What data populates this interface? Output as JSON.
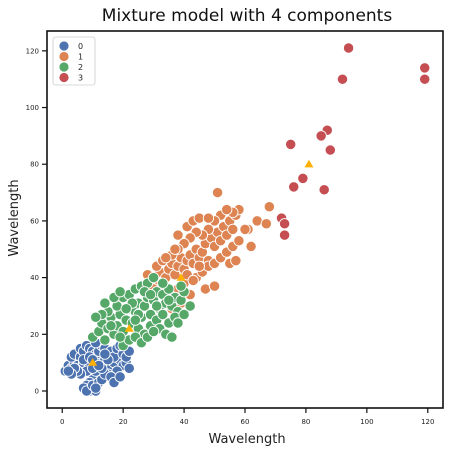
{
  "chart_data": {
    "type": "scatter",
    "title": "Mixture model with 4 components",
    "xlabel": "Wavelength",
    "ylabel": "Wavelength",
    "xlim": [
      -5,
      125
    ],
    "ylim": [
      -6,
      127
    ],
    "xticks": [
      0,
      20,
      40,
      60,
      80,
      100,
      120
    ],
    "yticks": [
      0,
      20,
      40,
      60,
      80,
      100,
      120
    ],
    "grid": false,
    "legend_position": "top-left",
    "series": [
      {
        "name": "0",
        "color": "#4c72b0",
        "points": [
          [
            1,
            7
          ],
          [
            2,
            9
          ],
          [
            3,
            8
          ],
          [
            4,
            10
          ],
          [
            5,
            11
          ],
          [
            3,
            12
          ],
          [
            4,
            13
          ],
          [
            6,
            12
          ],
          [
            5,
            9
          ],
          [
            7,
            10
          ],
          [
            8,
            13
          ],
          [
            6,
            15
          ],
          [
            7,
            14
          ],
          [
            8,
            16
          ],
          [
            9,
            15
          ],
          [
            10,
            14
          ],
          [
            11,
            13
          ],
          [
            12,
            12
          ],
          [
            13,
            10
          ],
          [
            14,
            11
          ],
          [
            15,
            9
          ],
          [
            16,
            8
          ],
          [
            17,
            10
          ],
          [
            18,
            12
          ],
          [
            19,
            11
          ],
          [
            20,
            9
          ],
          [
            21,
            10
          ],
          [
            22,
            8
          ],
          [
            18,
            7
          ],
          [
            15,
            6
          ],
          [
            12,
            5
          ],
          [
            10,
            4
          ],
          [
            9,
            3
          ],
          [
            8,
            2
          ],
          [
            7,
            1
          ],
          [
            9,
            0
          ],
          [
            11,
            0
          ],
          [
            8,
            0
          ],
          [
            10,
            2
          ],
          [
            12,
            3
          ],
          [
            13,
            4
          ],
          [
            14,
            6
          ],
          [
            16,
            5
          ],
          [
            17,
            3
          ],
          [
            19,
            5
          ],
          [
            11,
            7
          ],
          [
            9,
            9
          ],
          [
            8,
            7
          ],
          [
            6,
            6
          ],
          [
            5,
            7
          ],
          [
            4,
            8
          ],
          [
            3,
            6
          ],
          [
            2,
            7
          ],
          [
            7,
            11
          ],
          [
            9,
            12
          ],
          [
            10,
            11
          ],
          [
            12,
            14
          ],
          [
            13,
            16
          ],
          [
            14,
            15
          ],
          [
            11,
            17
          ],
          [
            15,
            13
          ],
          [
            16,
            14
          ],
          [
            17,
            12
          ],
          [
            18,
            15
          ],
          [
            20,
            13
          ],
          [
            19,
            16
          ],
          [
            21,
            12
          ],
          [
            22,
            14
          ],
          [
            13,
            8
          ],
          [
            15,
            11
          ],
          [
            10,
            8
          ],
          [
            12,
            9
          ],
          [
            14,
            13
          ],
          [
            11,
            1
          ]
        ]
      },
      {
        "name": "1",
        "color": "#dd8452",
        "points": [
          [
            28,
            41
          ],
          [
            30,
            39
          ],
          [
            32,
            42
          ],
          [
            34,
            40
          ],
          [
            31,
            44
          ],
          [
            33,
            46
          ],
          [
            35,
            43
          ],
          [
            36,
            45
          ],
          [
            37,
            41
          ],
          [
            38,
            44
          ],
          [
            39,
            47
          ],
          [
            40,
            43
          ],
          [
            41,
            46
          ],
          [
            42,
            48
          ],
          [
            43,
            45
          ],
          [
            44,
            50
          ],
          [
            45,
            47
          ],
          [
            46,
            49
          ],
          [
            47,
            52
          ],
          [
            48,
            46
          ],
          [
            49,
            54
          ],
          [
            50,
            51
          ],
          [
            51,
            56
          ],
          [
            52,
            53
          ],
          [
            53,
            58
          ],
          [
            54,
            55
          ],
          [
            55,
            60
          ],
          [
            56,
            57
          ],
          [
            57,
            62
          ],
          [
            58,
            64
          ],
          [
            52,
            62
          ],
          [
            50,
            60
          ],
          [
            48,
            57
          ],
          [
            46,
            55
          ],
          [
            44,
            56
          ],
          [
            42,
            54
          ],
          [
            40,
            52
          ],
          [
            38,
            50
          ],
          [
            36,
            48
          ],
          [
            34,
            47
          ],
          [
            38,
            55
          ],
          [
            41,
            58
          ],
          [
            43,
            60
          ],
          [
            45,
            61
          ],
          [
            48,
            61
          ],
          [
            42,
            34
          ],
          [
            39,
            31
          ],
          [
            36,
            29
          ],
          [
            38,
            36
          ],
          [
            40,
            38
          ],
          [
            44,
            40
          ],
          [
            46,
            42
          ],
          [
            48,
            44
          ],
          [
            50,
            45
          ],
          [
            52,
            47
          ],
          [
            54,
            49
          ],
          [
            56,
            51
          ],
          [
            58,
            53
          ],
          [
            47,
            36
          ],
          [
            50,
            37
          ],
          [
            55,
            45
          ],
          [
            41,
            41
          ],
          [
            34,
            36
          ],
          [
            32,
            38
          ],
          [
            30,
            36
          ],
          [
            61,
            57
          ],
          [
            62,
            51
          ],
          [
            64,
            60
          ],
          [
            67,
            59
          ],
          [
            68,
            65
          ],
          [
            56,
            63
          ],
          [
            54,
            64
          ],
          [
            51,
            70
          ],
          [
            37,
            50
          ],
          [
            43,
            39
          ],
          [
            60,
            57
          ],
          [
            57,
            46
          ],
          [
            45,
            44
          ]
        ]
      },
      {
        "name": "2",
        "color": "#55a868",
        "points": [
          [
            10,
            19
          ],
          [
            12,
            21
          ],
          [
            13,
            24
          ],
          [
            14,
            18
          ],
          [
            15,
            22
          ],
          [
            16,
            26
          ],
          [
            17,
            20
          ],
          [
            18,
            23
          ],
          [
            19,
            27
          ],
          [
            20,
            21
          ],
          [
            21,
            25
          ],
          [
            22,
            29
          ],
          [
            23,
            24
          ],
          [
            24,
            28
          ],
          [
            25,
            31
          ],
          [
            26,
            26
          ],
          [
            27,
            30
          ],
          [
            28,
            33
          ],
          [
            29,
            27
          ],
          [
            30,
            32
          ],
          [
            31,
            35
          ],
          [
            32,
            29
          ],
          [
            33,
            34
          ],
          [
            34,
            31
          ],
          [
            35,
            36
          ],
          [
            36,
            30
          ],
          [
            37,
            33
          ],
          [
            38,
            28
          ],
          [
            39,
            32
          ],
          [
            40,
            35
          ],
          [
            25,
            22
          ],
          [
            27,
            20
          ],
          [
            29,
            23
          ],
          [
            31,
            25
          ],
          [
            33,
            27
          ],
          [
            35,
            24
          ],
          [
            37,
            26
          ],
          [
            20,
            16
          ],
          [
            22,
            18
          ],
          [
            24,
            19
          ],
          [
            26,
            17
          ],
          [
            18,
            30
          ],
          [
            20,
            33
          ],
          [
            22,
            34
          ],
          [
            24,
            36
          ],
          [
            26,
            37
          ],
          [
            28,
            38
          ],
          [
            30,
            40
          ],
          [
            33,
            38
          ],
          [
            15,
            28
          ],
          [
            13,
            27
          ],
          [
            11,
            26
          ],
          [
            14,
            31
          ],
          [
            17,
            33
          ],
          [
            19,
            35
          ],
          [
            32,
            22
          ],
          [
            34,
            20
          ],
          [
            36,
            19
          ],
          [
            28,
            19
          ],
          [
            30,
            21
          ],
          [
            38,
            24
          ],
          [
            40,
            27
          ],
          [
            42,
            30
          ],
          [
            23,
            31
          ],
          [
            31,
            30
          ],
          [
            27,
            35
          ],
          [
            21,
            29
          ],
          [
            16,
            23
          ],
          [
            19,
            19
          ],
          [
            25,
            27
          ],
          [
            29,
            34
          ],
          [
            35,
            32
          ],
          [
            39,
            37
          ],
          [
            24,
            25
          ]
        ]
      },
      {
        "name": "3",
        "color": "#c44e52",
        "points": [
          [
            94,
            121
          ],
          [
            92,
            110
          ],
          [
            119,
            114
          ],
          [
            119,
            110
          ],
          [
            75,
            87
          ],
          [
            87,
            92
          ],
          [
            85,
            90
          ],
          [
            88,
            85
          ],
          [
            79,
            75
          ],
          [
            86,
            71
          ],
          [
            76,
            72
          ],
          [
            72,
            61
          ],
          [
            73,
            59
          ],
          [
            73,
            55
          ]
        ]
      }
    ],
    "means": [
      {
        "x": 10,
        "y": 10
      },
      {
        "x": 39,
        "y": 40
      },
      {
        "x": 22,
        "y": 22
      },
      {
        "x": 81,
        "y": 80
      }
    ],
    "mean_marker_color": "#ffb000"
  }
}
